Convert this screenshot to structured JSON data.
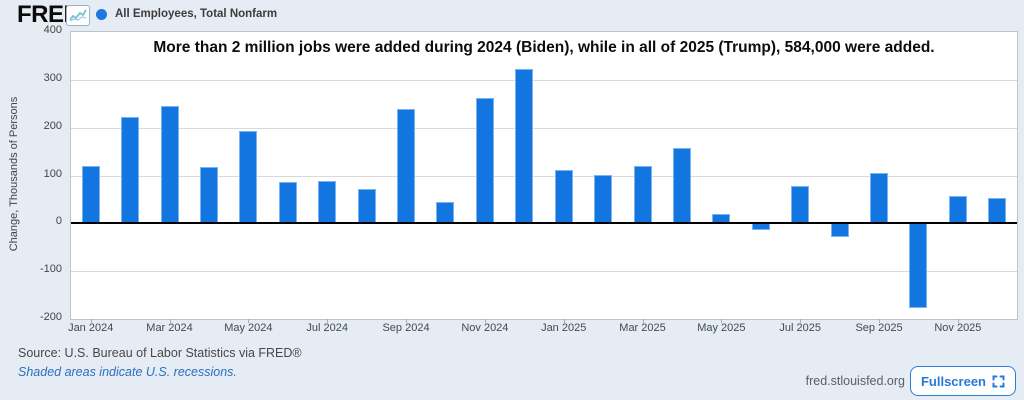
{
  "header": {
    "logo_text": "FRED",
    "series_label": "All Employees, Total Nonfarm"
  },
  "chart_data": {
    "type": "bar",
    "title": "More than 2 million jobs were added during 2024 (Biden), while in all of 2025 (Trump), 584,000 were added.",
    "ylabel": "Change, Thousands of Persons",
    "ylim": [
      -200,
      400
    ],
    "yticks": [
      400,
      300,
      200,
      100,
      0,
      -100,
      -200
    ],
    "categories": [
      "Jan 2024",
      "Feb 2024",
      "Mar 2024",
      "Apr 2024",
      "May 2024",
      "Jun 2024",
      "Jul 2024",
      "Aug 2024",
      "Sep 2024",
      "Oct 2024",
      "Nov 2024",
      "Dec 2024",
      "Jan 2025",
      "Feb 2025",
      "Mar 2025",
      "Apr 2025",
      "May 2025",
      "Jun 2025",
      "Jul 2025",
      "Aug 2025",
      "Sep 2025",
      "Oct 2025",
      "Nov 2025",
      "Dec 2025"
    ],
    "values": [
      119,
      222,
      246,
      118,
      193,
      87,
      88,
      71,
      240,
      44,
      261,
      323,
      111,
      102,
      120,
      158,
      19,
      -13,
      79,
      -29,
      106,
      -178,
      57,
      52
    ],
    "xtick_labels": [
      "Jan 2024",
      "Mar 2024",
      "May 2024",
      "Jul 2024",
      "Sep 2024",
      "Nov 2024",
      "Jan 2025",
      "Mar 2025",
      "May 2025",
      "Jul 2025",
      "Sep 2025",
      "Nov 2025"
    ],
    "grid": true,
    "zero_line": true,
    "legend_position": "top-header"
  },
  "footer": {
    "source_line": "Source: U.S. Bureau of Labor Statistics via FRED®",
    "recession_note": "Shaded areas indicate U.S. recessions.",
    "site_link": "fred.stlouisfed.org",
    "fullscreen_label": "Fullscreen"
  },
  "colors": {
    "background": "#e5ecf4",
    "plot_background": "#ffffff",
    "bar": "#1375e0",
    "series_marker": "#1b79e0",
    "accent_blue": "#2a79d8",
    "grid_line": "#d9d9d9",
    "axis_text": "#444444",
    "link_blue": "#2a6fbf"
  }
}
